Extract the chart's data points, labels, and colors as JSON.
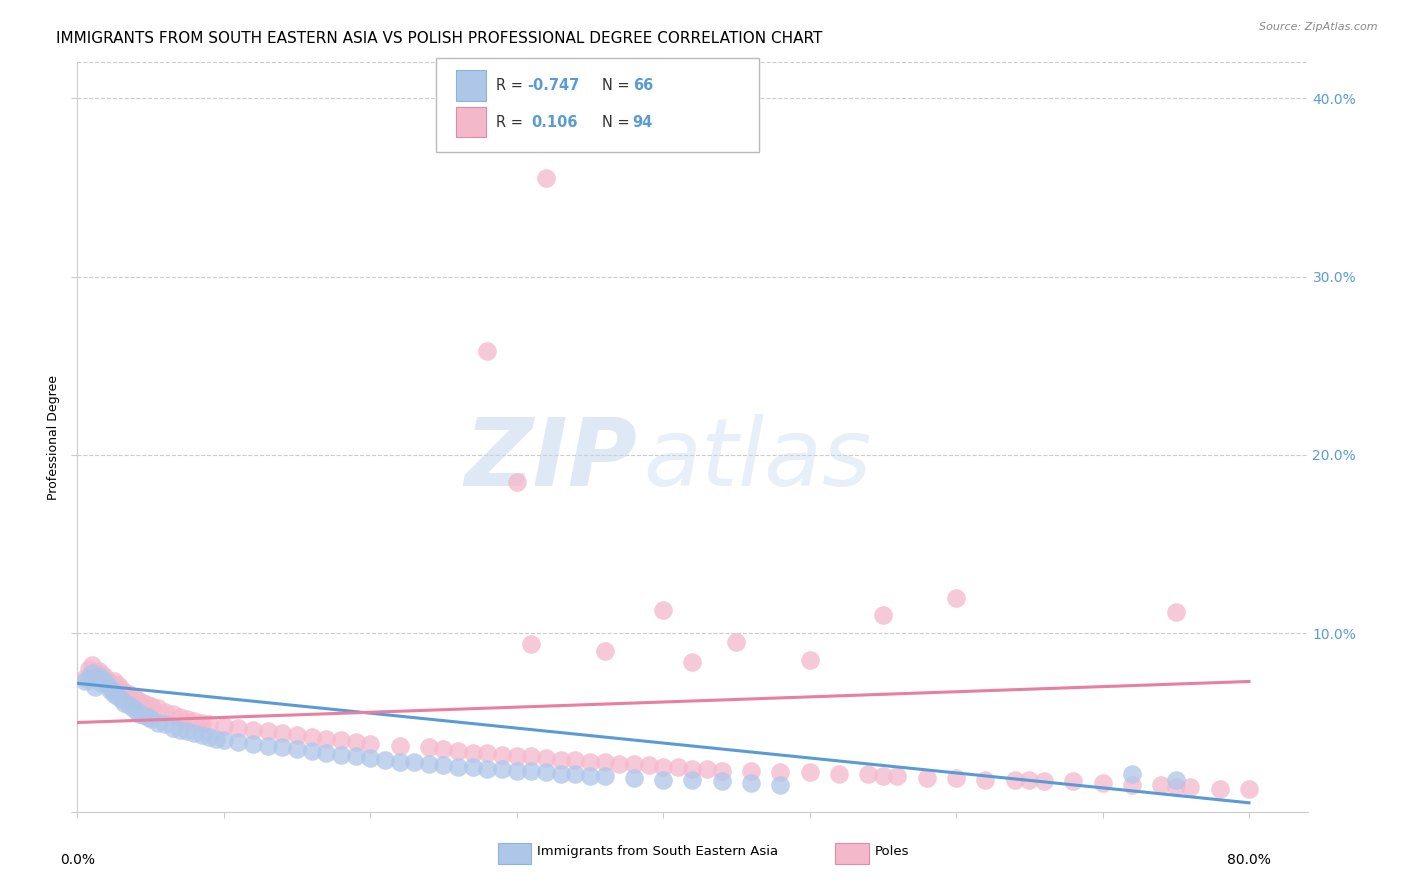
{
  "title": "IMMIGRANTS FROM SOUTH EASTERN ASIA VS POLISH PROFESSIONAL DEGREE CORRELATION CHART",
  "source": "Source: ZipAtlas.com",
  "ylabel": "Professional Degree",
  "ylim": [
    0.0,
    0.42
  ],
  "xlim": [
    0.0,
    0.84
  ],
  "yticks": [
    0.0,
    0.1,
    0.2,
    0.3,
    0.4
  ],
  "xticks": [
    0.0,
    0.1,
    0.2,
    0.3,
    0.4,
    0.5,
    0.6,
    0.7,
    0.8
  ],
  "watermark_line1": "ZIP",
  "watermark_line2": "atlas",
  "blue_scatter": [
    [
      0.005,
      0.073
    ],
    [
      0.008,
      0.075
    ],
    [
      0.01,
      0.078
    ],
    [
      0.012,
      0.07
    ],
    [
      0.015,
      0.076
    ],
    [
      0.016,
      0.072
    ],
    [
      0.018,
      0.074
    ],
    [
      0.02,
      0.071
    ],
    [
      0.022,
      0.068
    ],
    [
      0.024,
      0.069
    ],
    [
      0.025,
      0.066
    ],
    [
      0.027,
      0.065
    ],
    [
      0.03,
      0.063
    ],
    [
      0.032,
      0.061
    ],
    [
      0.035,
      0.06
    ],
    [
      0.038,
      0.058
    ],
    [
      0.04,
      0.057
    ],
    [
      0.042,
      0.055
    ],
    [
      0.045,
      0.054
    ],
    [
      0.048,
      0.053
    ],
    [
      0.05,
      0.052
    ],
    [
      0.055,
      0.05
    ],
    [
      0.06,
      0.049
    ],
    [
      0.065,
      0.047
    ],
    [
      0.07,
      0.046
    ],
    [
      0.075,
      0.045
    ],
    [
      0.08,
      0.044
    ],
    [
      0.085,
      0.043
    ],
    [
      0.09,
      0.042
    ],
    [
      0.095,
      0.041
    ],
    [
      0.1,
      0.04
    ],
    [
      0.11,
      0.039
    ],
    [
      0.12,
      0.038
    ],
    [
      0.13,
      0.037
    ],
    [
      0.14,
      0.036
    ],
    [
      0.15,
      0.035
    ],
    [
      0.16,
      0.034
    ],
    [
      0.17,
      0.033
    ],
    [
      0.18,
      0.032
    ],
    [
      0.19,
      0.031
    ],
    [
      0.2,
      0.03
    ],
    [
      0.21,
      0.029
    ],
    [
      0.22,
      0.028
    ],
    [
      0.23,
      0.028
    ],
    [
      0.24,
      0.027
    ],
    [
      0.25,
      0.026
    ],
    [
      0.26,
      0.025
    ],
    [
      0.27,
      0.025
    ],
    [
      0.28,
      0.024
    ],
    [
      0.29,
      0.024
    ],
    [
      0.3,
      0.023
    ],
    [
      0.31,
      0.023
    ],
    [
      0.32,
      0.022
    ],
    [
      0.33,
      0.021
    ],
    [
      0.34,
      0.021
    ],
    [
      0.35,
      0.02
    ],
    [
      0.36,
      0.02
    ],
    [
      0.38,
      0.019
    ],
    [
      0.4,
      0.018
    ],
    [
      0.42,
      0.018
    ],
    [
      0.44,
      0.017
    ],
    [
      0.46,
      0.016
    ],
    [
      0.48,
      0.015
    ],
    [
      0.72,
      0.021
    ],
    [
      0.75,
      0.018
    ]
  ],
  "pink_scatter": [
    [
      0.005,
      0.075
    ],
    [
      0.008,
      0.08
    ],
    [
      0.01,
      0.082
    ],
    [
      0.012,
      0.078
    ],
    [
      0.015,
      0.079
    ],
    [
      0.016,
      0.077
    ],
    [
      0.018,
      0.076
    ],
    [
      0.02,
      0.074
    ],
    [
      0.022,
      0.072
    ],
    [
      0.024,
      0.07
    ],
    [
      0.025,
      0.073
    ],
    [
      0.027,
      0.068
    ],
    [
      0.028,
      0.071
    ],
    [
      0.03,
      0.069
    ],
    [
      0.032,
      0.067
    ],
    [
      0.035,
      0.066
    ],
    [
      0.038,
      0.064
    ],
    [
      0.04,
      0.063
    ],
    [
      0.042,
      0.062
    ],
    [
      0.045,
      0.061
    ],
    [
      0.048,
      0.06
    ],
    [
      0.05,
      0.059
    ],
    [
      0.055,
      0.058
    ],
    [
      0.06,
      0.056
    ],
    [
      0.065,
      0.055
    ],
    [
      0.07,
      0.053
    ],
    [
      0.075,
      0.052
    ],
    [
      0.08,
      0.051
    ],
    [
      0.085,
      0.05
    ],
    [
      0.09,
      0.049
    ],
    [
      0.1,
      0.048
    ],
    [
      0.11,
      0.047
    ],
    [
      0.12,
      0.046
    ],
    [
      0.13,
      0.045
    ],
    [
      0.14,
      0.044
    ],
    [
      0.15,
      0.043
    ],
    [
      0.16,
      0.042
    ],
    [
      0.17,
      0.041
    ],
    [
      0.18,
      0.04
    ],
    [
      0.19,
      0.039
    ],
    [
      0.2,
      0.038
    ],
    [
      0.22,
      0.037
    ],
    [
      0.24,
      0.036
    ],
    [
      0.25,
      0.035
    ],
    [
      0.26,
      0.034
    ],
    [
      0.27,
      0.033
    ],
    [
      0.28,
      0.033
    ],
    [
      0.29,
      0.032
    ],
    [
      0.3,
      0.031
    ],
    [
      0.31,
      0.031
    ],
    [
      0.32,
      0.03
    ],
    [
      0.33,
      0.029
    ],
    [
      0.34,
      0.029
    ],
    [
      0.35,
      0.028
    ],
    [
      0.36,
      0.028
    ],
    [
      0.37,
      0.027
    ],
    [
      0.38,
      0.027
    ],
    [
      0.39,
      0.026
    ],
    [
      0.4,
      0.025
    ],
    [
      0.41,
      0.025
    ],
    [
      0.42,
      0.024
    ],
    [
      0.43,
      0.024
    ],
    [
      0.44,
      0.023
    ],
    [
      0.46,
      0.023
    ],
    [
      0.48,
      0.022
    ],
    [
      0.5,
      0.022
    ],
    [
      0.52,
      0.021
    ],
    [
      0.54,
      0.021
    ],
    [
      0.55,
      0.02
    ],
    [
      0.56,
      0.02
    ],
    [
      0.58,
      0.019
    ],
    [
      0.6,
      0.019
    ],
    [
      0.62,
      0.018
    ],
    [
      0.64,
      0.018
    ],
    [
      0.65,
      0.018
    ],
    [
      0.66,
      0.017
    ],
    [
      0.68,
      0.017
    ],
    [
      0.7,
      0.016
    ],
    [
      0.72,
      0.015
    ],
    [
      0.74,
      0.015
    ],
    [
      0.75,
      0.014
    ],
    [
      0.76,
      0.014
    ],
    [
      0.78,
      0.013
    ],
    [
      0.8,
      0.013
    ],
    [
      0.32,
      0.355
    ],
    [
      0.28,
      0.258
    ],
    [
      0.3,
      0.185
    ],
    [
      0.31,
      0.094
    ],
    [
      0.36,
      0.09
    ],
    [
      0.4,
      0.113
    ],
    [
      0.42,
      0.084
    ],
    [
      0.45,
      0.095
    ],
    [
      0.5,
      0.085
    ],
    [
      0.55,
      0.11
    ],
    [
      0.6,
      0.12
    ],
    [
      0.75,
      0.112
    ]
  ],
  "blue_line_x": [
    0.0,
    0.8
  ],
  "blue_line_y": [
    0.072,
    0.005
  ],
  "pink_line_x": [
    0.0,
    0.8
  ],
  "pink_line_y": [
    0.05,
    0.073
  ],
  "blue_scatter_color": "#aec6e8",
  "blue_scatter_edge": "#7aaad4",
  "pink_scatter_color": "#f4b8cb",
  "pink_scatter_edge": "#e889a8",
  "blue_line_color": "#5b9bd5",
  "pink_line_color": "#e87fa0",
  "grid_color": "#cccccc",
  "background_color": "#ffffff",
  "title_fontsize": 11,
  "axis_label_fontsize": 9,
  "tick_fontsize": 10,
  "right_tick_color": "#5b9bd5",
  "legend_R_color": "#333333",
  "legend_val_color": "#5b9bd5",
  "legend_N_color": "#5b9bd5"
}
